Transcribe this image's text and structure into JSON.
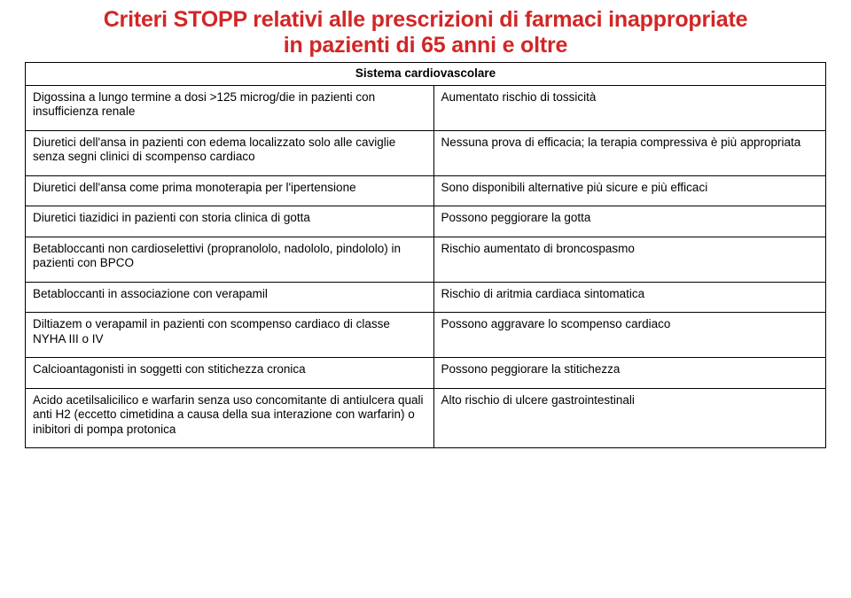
{
  "title_line1": "Criteri STOPP relativi alle prescrizioni di farmaci inappropriate",
  "title_line2": "in pazienti di 65 anni e oltre",
  "table_header": "Sistema cardiovascolare",
  "rows": [
    {
      "left": "Digossina a lungo termine a dosi >125 microg/die in pazienti con insufficienza renale",
      "right": "Aumentato rischio di tossicità"
    },
    {
      "left": "Diuretici dell'ansa in pazienti con edema localizzato solo alle caviglie senza segni clinici di scompenso cardiaco",
      "right": "Nessuna prova di efficacia; la terapia compressiva è più appropriata"
    },
    {
      "left": "Diuretici dell'ansa come prima monoterapia per l'ipertensione",
      "right": "Sono disponibili alternative più sicure e più efficaci"
    },
    {
      "left": "Diuretici tiazidici in pazienti con storia clinica di gotta",
      "right": "Possono peggiorare la gotta"
    },
    {
      "left": "Betabloccanti non cardioselettivi (propranololo, nadololo, pindololo) in pazienti con BPCO",
      "right": "Rischio aumentato di broncospasmo"
    },
    {
      "left": "Betabloccanti in associazione con verapamil",
      "right": "Rischio di aritmia cardiaca sintomatica"
    },
    {
      "left": "Diltiazem o verapamil in pazienti con scompenso cardiaco di classe NYHA III o IV",
      "right": "Possono aggravare lo scompenso cardiaco"
    },
    {
      "left": "Calcioantagonisti in soggetti con stitichezza cronica",
      "right": "Possono peggiorare la stitichezza"
    },
    {
      "left": "Acido acetilsalicilico e warfarin senza uso concomitante di antiulcera quali anti H2 (eccetto cimetidina a causa della sua interazione con warfarin) o inibitori di pompa protonica",
      "right": "Alto rischio di ulcere gastrointestinali"
    }
  ],
  "colors": {
    "title": "#d22626",
    "text": "#000000",
    "border": "#000000",
    "background": "#ffffff"
  }
}
